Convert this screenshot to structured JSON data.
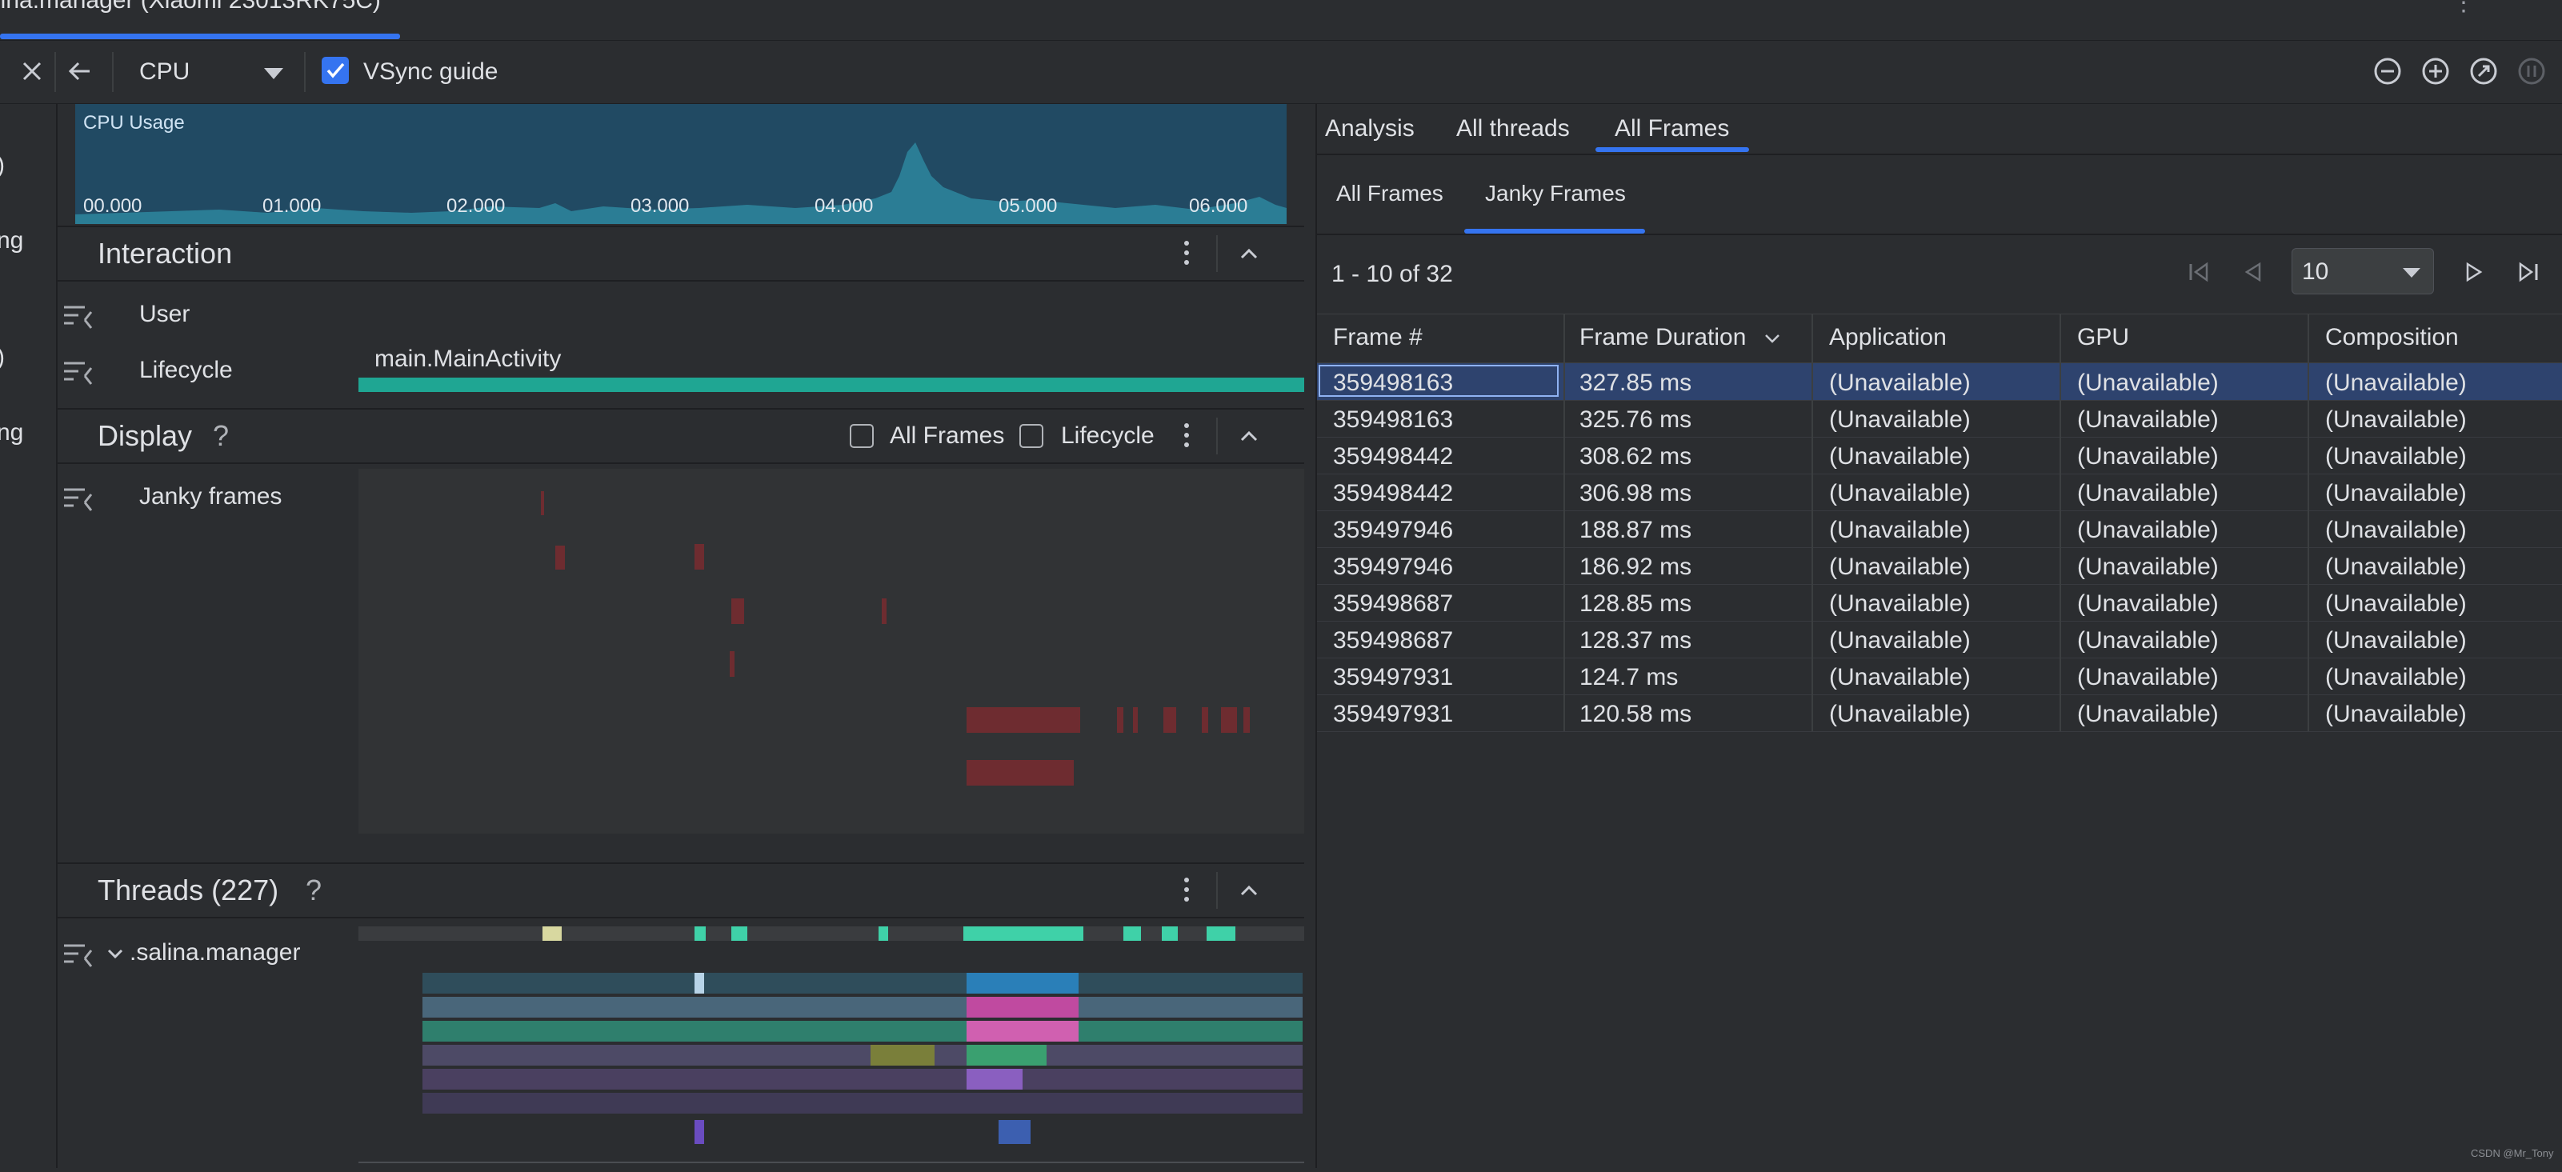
{
  "window": {
    "title": "lina.manager (Xiaomi 23013RK75C)"
  },
  "toolbar": {
    "profiler": "CPU",
    "vsync_label": "VSync guide",
    "vsync_checked": true
  },
  "gutter": [
    ")",
    "ng",
    ")",
    "ng"
  ],
  "cpu_usage": {
    "title": "CPU Usage",
    "ticks": [
      "00.000",
      "01.000",
      "02.000",
      "03.000",
      "04.000",
      "05.000",
      "06.000"
    ]
  },
  "interaction": {
    "title": "Interaction",
    "tracks": [
      "User",
      "Lifecycle"
    ],
    "lifecycle_event": "main.MainActivity"
  },
  "display": {
    "title": "Display",
    "help": "?",
    "filters": [
      "All Frames",
      "Lifecycle"
    ],
    "track": "Janky frames"
  },
  "threads": {
    "title": "Threads (227)",
    "help": "?",
    "process": ".salina.manager"
  },
  "right": {
    "tabs": [
      "Analysis",
      "All threads",
      "All Frames"
    ],
    "active_tab": "All Frames",
    "subtabs": [
      "All Frames",
      "Janky Frames"
    ],
    "active_subtab": "Janky Frames",
    "pager_text": "1 - 10 of 32",
    "page_size": "10"
  },
  "table": {
    "columns": [
      "Frame #",
      "Frame Duration",
      "Application",
      "GPU",
      "Composition"
    ],
    "sort_column": "Frame Duration",
    "rows": [
      [
        "359498163",
        "327.85 ms",
        "(Unavailable)",
        "(Unavailable)",
        "(Unavailable)"
      ],
      [
        "359498163",
        "325.76 ms",
        "(Unavailable)",
        "(Unavailable)",
        "(Unavailable)"
      ],
      [
        "359498442",
        "308.62 ms",
        "(Unavailable)",
        "(Unavailable)",
        "(Unavailable)"
      ],
      [
        "359498442",
        "306.98 ms",
        "(Unavailable)",
        "(Unavailable)",
        "(Unavailable)"
      ],
      [
        "359497946",
        "188.87 ms",
        "(Unavailable)",
        "(Unavailable)",
        "(Unavailable)"
      ],
      [
        "359497946",
        "186.92 ms",
        "(Unavailable)",
        "(Unavailable)",
        "(Unavailable)"
      ],
      [
        "359498687",
        "128.85 ms",
        "(Unavailable)",
        "(Unavailable)",
        "(Unavailable)"
      ],
      [
        "359498687",
        "128.37 ms",
        "(Unavailable)",
        "(Unavailable)",
        "(Unavailable)"
      ],
      [
        "359497931",
        "124.7 ms",
        "(Unavailable)",
        "(Unavailable)",
        "(Unavailable)"
      ],
      [
        "359497931",
        "120.58 ms",
        "(Unavailable)",
        "(Unavailable)",
        "(Unavailable)"
      ]
    ],
    "selected_row": 0
  },
  "watermark": "CSDN @Mr_Tony",
  "colors": {
    "accent": "#3574f0",
    "lifecycle_bar": "#1fa693",
    "jank": "#6e2c30",
    "selected_row": "#2e436e"
  }
}
